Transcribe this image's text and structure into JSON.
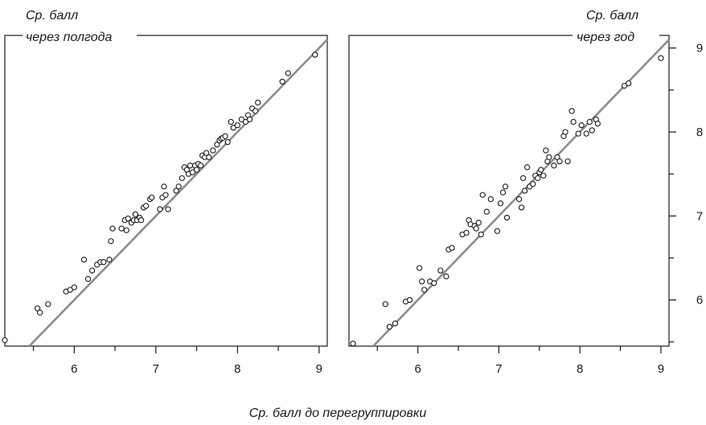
{
  "chart_data": [
    {
      "type": "scatter",
      "title_line1": "Ср. балл",
      "title_line2": "через полгода",
      "xlabel": "Ср. балл до перегруппировки",
      "xlim": [
        5.15,
        9.1
      ],
      "ylim": [
        5.45,
        9.15
      ],
      "xticks": [
        6,
        7,
        8,
        9
      ],
      "yticks": [],
      "reference_line": "y = x",
      "points": [
        [
          5.15,
          5.52
        ],
        [
          5.55,
          5.9
        ],
        [
          5.58,
          5.85
        ],
        [
          5.68,
          5.95
        ],
        [
          5.9,
          6.1
        ],
        [
          5.95,
          6.12
        ],
        [
          6.0,
          6.15
        ],
        [
          6.12,
          6.48
        ],
        [
          6.17,
          6.25
        ],
        [
          6.22,
          6.35
        ],
        [
          6.28,
          6.42
        ],
        [
          6.32,
          6.45
        ],
        [
          6.36,
          6.45
        ],
        [
          6.43,
          6.48
        ],
        [
          6.45,
          6.7
        ],
        [
          6.47,
          6.85
        ],
        [
          6.58,
          6.85
        ],
        [
          6.62,
          6.95
        ],
        [
          6.64,
          6.83
        ],
        [
          6.66,
          6.97
        ],
        [
          6.7,
          6.92
        ],
        [
          6.73,
          6.95
        ],
        [
          6.75,
          7.02
        ],
        [
          6.77,
          6.95
        ],
        [
          6.8,
          6.98
        ],
        [
          6.82,
          6.95
        ],
        [
          6.85,
          7.1
        ],
        [
          6.88,
          7.12
        ],
        [
          6.93,
          7.2
        ],
        [
          6.95,
          7.22
        ],
        [
          7.05,
          7.08
        ],
        [
          7.08,
          7.22
        ],
        [
          7.1,
          7.35
        ],
        [
          7.12,
          7.25
        ],
        [
          7.15,
          7.08
        ],
        [
          7.25,
          7.3
        ],
        [
          7.28,
          7.35
        ],
        [
          7.32,
          7.45
        ],
        [
          7.35,
          7.58
        ],
        [
          7.38,
          7.55
        ],
        [
          7.4,
          7.5
        ],
        [
          7.42,
          7.6
        ],
        [
          7.45,
          7.52
        ],
        [
          7.48,
          7.6
        ],
        [
          7.5,
          7.55
        ],
        [
          7.52,
          7.62
        ],
        [
          7.55,
          7.6
        ],
        [
          7.57,
          7.72
        ],
        [
          7.6,
          7.7
        ],
        [
          7.62,
          7.75
        ],
        [
          7.65,
          7.7
        ],
        [
          7.7,
          7.78
        ],
        [
          7.75,
          7.85
        ],
        [
          7.78,
          7.9
        ],
        [
          7.8,
          7.92
        ],
        [
          7.82,
          7.93
        ],
        [
          7.85,
          7.95
        ],
        [
          7.88,
          7.88
        ],
        [
          7.92,
          8.12
        ],
        [
          7.95,
          8.05
        ],
        [
          8.0,
          8.08
        ],
        [
          8.05,
          8.15
        ],
        [
          8.1,
          8.12
        ],
        [
          8.13,
          8.2
        ],
        [
          8.15,
          8.15
        ],
        [
          8.18,
          8.28
        ],
        [
          8.22,
          8.25
        ],
        [
          8.25,
          8.35
        ],
        [
          8.55,
          8.6
        ],
        [
          8.62,
          8.7
        ],
        [
          8.95,
          8.92
        ]
      ]
    },
    {
      "type": "scatter",
      "title_line1": "Ср. балл",
      "title_line2": "через год",
      "xlabel": "Ср. балл до перегруппировки",
      "xlim": [
        5.15,
        9.1
      ],
      "ylim": [
        5.45,
        9.15
      ],
      "xticks": [
        6,
        7,
        8,
        9
      ],
      "yticks": [
        6,
        7,
        8,
        9
      ],
      "reference_line": "y = x",
      "points": [
        [
          5.2,
          5.48
        ],
        [
          5.6,
          5.95
        ],
        [
          5.65,
          5.68
        ],
        [
          5.72,
          5.72
        ],
        [
          5.85,
          5.98
        ],
        [
          5.9,
          6.0
        ],
        [
          6.02,
          6.38
        ],
        [
          6.05,
          6.22
        ],
        [
          6.08,
          6.12
        ],
        [
          6.15,
          6.22
        ],
        [
          6.2,
          6.2
        ],
        [
          6.28,
          6.35
        ],
        [
          6.35,
          6.28
        ],
        [
          6.38,
          6.6
        ],
        [
          6.42,
          6.62
        ],
        [
          6.55,
          6.78
        ],
        [
          6.6,
          6.8
        ],
        [
          6.63,
          6.95
        ],
        [
          6.65,
          6.9
        ],
        [
          6.7,
          6.88
        ],
        [
          6.72,
          6.85
        ],
        [
          6.75,
          6.92
        ],
        [
          6.78,
          6.78
        ],
        [
          6.8,
          7.25
        ],
        [
          6.85,
          7.05
        ],
        [
          6.9,
          7.2
        ],
        [
          6.98,
          6.82
        ],
        [
          7.02,
          7.15
        ],
        [
          7.05,
          7.28
        ],
        [
          7.08,
          7.35
        ],
        [
          7.1,
          6.98
        ],
        [
          7.25,
          7.2
        ],
        [
          7.28,
          7.1
        ],
        [
          7.3,
          7.45
        ],
        [
          7.32,
          7.3
        ],
        [
          7.35,
          7.58
        ],
        [
          7.38,
          7.35
        ],
        [
          7.42,
          7.38
        ],
        [
          7.45,
          7.48
        ],
        [
          7.48,
          7.45
        ],
        [
          7.5,
          7.52
        ],
        [
          7.52,
          7.55
        ],
        [
          7.55,
          7.48
        ],
        [
          7.58,
          7.78
        ],
        [
          7.6,
          7.65
        ],
        [
          7.62,
          7.7
        ],
        [
          7.68,
          7.6
        ],
        [
          7.72,
          7.7
        ],
        [
          7.75,
          7.65
        ],
        [
          7.8,
          7.95
        ],
        [
          7.82,
          8.0
        ],
        [
          7.85,
          7.65
        ],
        [
          7.9,
          8.25
        ],
        [
          7.92,
          8.12
        ],
        [
          7.98,
          7.98
        ],
        [
          8.02,
          8.08
        ],
        [
          8.08,
          7.98
        ],
        [
          8.12,
          8.12
        ],
        [
          8.15,
          8.02
        ],
        [
          8.2,
          8.15
        ],
        [
          8.22,
          8.1
        ],
        [
          8.55,
          8.55
        ],
        [
          8.6,
          8.58
        ],
        [
          9.0,
          8.88
        ]
      ]
    }
  ]
}
